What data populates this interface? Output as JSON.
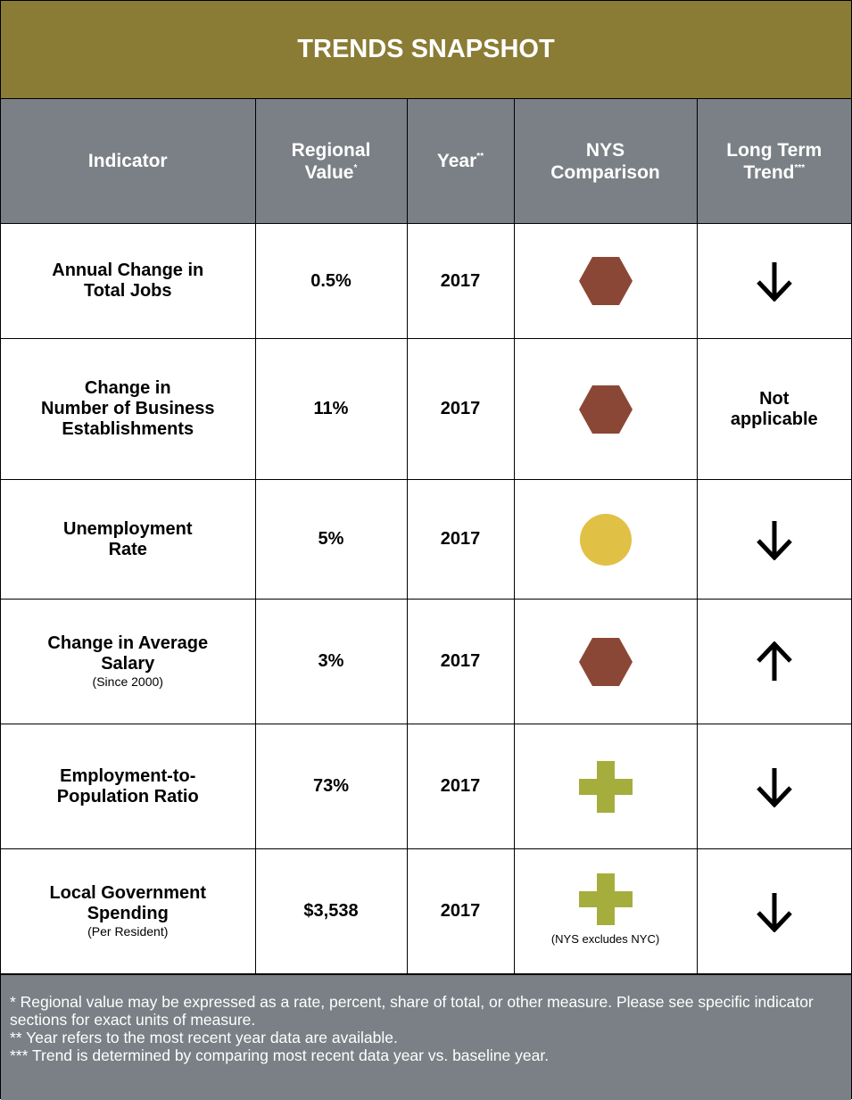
{
  "title": "TRENDS SNAPSHOT",
  "headers": [
    {
      "lines": [
        "Indicator"
      ]
    },
    {
      "lines": [
        "Regional",
        "Value"
      ],
      "mark": "*"
    },
    {
      "lines": [
        "Year"
      ],
      "mark": "**"
    },
    {
      "lines": [
        "NYS",
        "Comparison"
      ]
    },
    {
      "lines": [
        "Long Term",
        "Trend"
      ],
      "mark": "***"
    }
  ],
  "rows": [
    {
      "indicator": [
        "Annual Change in",
        "Total Jobs"
      ],
      "value": "0.5%",
      "year": "2017"
    },
    {
      "indicator": [
        "Change in",
        "Number of Business",
        "Establishments"
      ],
      "value": "11%",
      "year": "2017",
      "trend": [
        "Not",
        "applicable"
      ]
    },
    {
      "indicator": [
        "Unemployment",
        "Rate"
      ],
      "value": "5%",
      "year": "2017"
    },
    {
      "indicator": [
        "Change in Average",
        "Salary"
      ],
      "note": "(Since 2000)",
      "value": "3%",
      "year": "2017"
    },
    {
      "indicator": [
        "Employment-to-",
        "Population Ratio"
      ],
      "value": "73%",
      "year": "2017"
    },
    {
      "indicator": [
        "Local Government",
        "Spending"
      ],
      "note": "(Per Resident)",
      "value": "$3,538",
      "year": "2017",
      "comparison_note": "(NYS excludes NYC)"
    }
  ],
  "footnotes": [
    "* Regional value may be expressed as a rate, percent, share of total, or other measure.  Please see specific indicator sections for exact units of measure.",
    "** Year refers to the most recent year data are available.",
    "*** Trend is determined by comparing most recent data year vs. baseline year."
  ]
}
